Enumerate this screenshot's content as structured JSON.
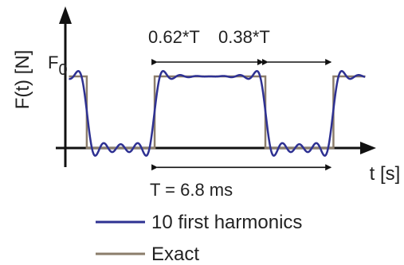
{
  "chart_data": {
    "type": "line",
    "xlabel": "t [s]",
    "ylabel": "F(t) [N]",
    "y_level_label": "F0",
    "y_level_label_main": "F",
    "y_level_label_sub": "0",
    "xlim": [
      -0.12,
      1.62
    ],
    "ylim": [
      -0.2,
      1.35
    ],
    "period_ms": 6.8,
    "duty_cycle": 0.62,
    "high_value": 1,
    "low_value": 0,
    "pulse_starts": [
      -0.25,
      0.38,
      1.38
    ],
    "annotations": [
      {
        "text": "0.62*T",
        "from": 0.38,
        "to": 1.0,
        "y": 1.2
      },
      {
        "text": "0.38*T",
        "from": 1.0,
        "to": 1.38,
        "y": 1.2
      },
      {
        "text": "T = 6.8 ms",
        "from": 0.38,
        "to": 1.38,
        "y": -0.27
      }
    ],
    "series": [
      {
        "name": "10 first harmonics",
        "kind": "fourier",
        "harmonics": 10,
        "color": "#2e3192"
      },
      {
        "name": "Exact",
        "kind": "square",
        "color": "#8b7d6b"
      }
    ],
    "legend_position": "bottom",
    "grid": false
  }
}
